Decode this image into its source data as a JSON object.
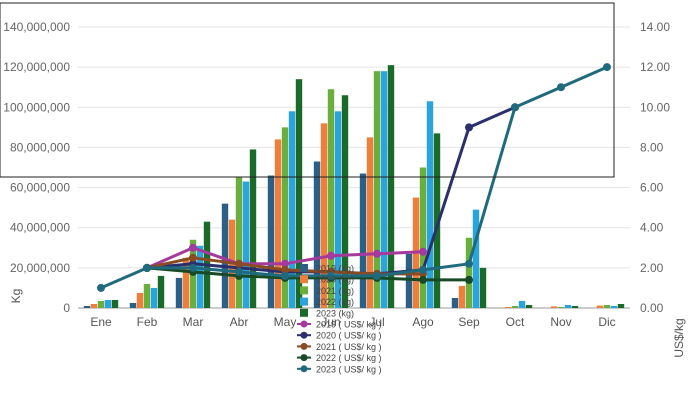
{
  "chart_data": {
    "type": "bar",
    "categories": [
      "Ene",
      "Feb",
      "Mar",
      "Abr",
      "May",
      "Jun",
      "Jul",
      "Ago",
      "Sep",
      "Oct",
      "Nov",
      "Dic"
    ],
    "ylabel": "Kg",
    "y2label": "US$/kg",
    "ylim": [
      0,
      140000000
    ],
    "y2lim": [
      0,
      14
    ],
    "yticks": [
      "0",
      "20,000,000",
      "40,000,000",
      "60,000,000",
      "80,000,000",
      "100,000,000",
      "120,000,000",
      "140,000,000"
    ],
    "y2ticks": [
      "0.00",
      "2.00",
      "4.00",
      "6.00",
      "8.00",
      "10.00",
      "12.00",
      "14.00"
    ],
    "legend_position": "overlay-center",
    "bar_series": [
      {
        "name": "2019 (kg)",
        "color": "#2b5f86",
        "values": [
          1000000,
          2500000,
          15000000,
          52000000,
          66000000,
          73000000,
          67000000,
          27000000,
          5000000,
          0,
          0,
          0
        ]
      },
      {
        "name": "2020 (kg)",
        "color": "#ee7e3c",
        "values": [
          2000000,
          7500000,
          25000000,
          44000000,
          84000000,
          92000000,
          85000000,
          55000000,
          11000000,
          500000,
          800000,
          1200000
        ]
      },
      {
        "name": "2021 (kg)",
        "color": "#6aae3e",
        "values": [
          3500000,
          12000000,
          34000000,
          65000000,
          90000000,
          109000000,
          118000000,
          70000000,
          35000000,
          1000000,
          500000,
          1500000
        ]
      },
      {
        "name": "2022 (kg)",
        "color": "#2aa4dc",
        "values": [
          4000000,
          10000000,
          31000000,
          63000000,
          98000000,
          98000000,
          118000000,
          103000000,
          49000000,
          3500000,
          1500000,
          1000000
        ]
      },
      {
        "name": "2023 (kg)",
        "color": "#1a6a2a",
        "values": [
          4000000,
          16000000,
          43000000,
          79000000,
          114000000,
          106000000,
          121000000,
          87000000,
          20000000,
          1500000,
          1000000,
          2000000
        ]
      }
    ],
    "line_series": [
      {
        "name": "2019 ( US$/ kg )",
        "color": "#a43a9e",
        "values": [
          null,
          2.0,
          3.0,
          2.2,
          2.2,
          2.6,
          2.7,
          2.8,
          null,
          null,
          null,
          null
        ]
      },
      {
        "name": "2020 ( US$/ kg )",
        "color": "#2a2f6e",
        "values": [
          null,
          2.0,
          2.2,
          2.0,
          1.8,
          1.8,
          1.7,
          1.9,
          9.0,
          10.0,
          null,
          null
        ]
      },
      {
        "name": "2021 ( US$/ kg )",
        "color": "#8a4a22",
        "values": [
          null,
          2.0,
          2.5,
          2.2,
          1.9,
          1.8,
          1.7,
          1.7,
          null,
          null,
          null,
          null
        ]
      },
      {
        "name": "2022 ( US$/ kg )",
        "color": "#184a26",
        "values": [
          null,
          2.0,
          1.8,
          1.6,
          1.5,
          1.5,
          1.5,
          1.4,
          1.4,
          null,
          null,
          null
        ]
      },
      {
        "name": "2023 ( US$/ kg )",
        "color": "#1f6a7e",
        "values": [
          1.0,
          2.0,
          2.0,
          1.8,
          1.6,
          1.6,
          1.6,
          1.9,
          2.2,
          10.0,
          11.0,
          12.0
        ]
      }
    ]
  }
}
